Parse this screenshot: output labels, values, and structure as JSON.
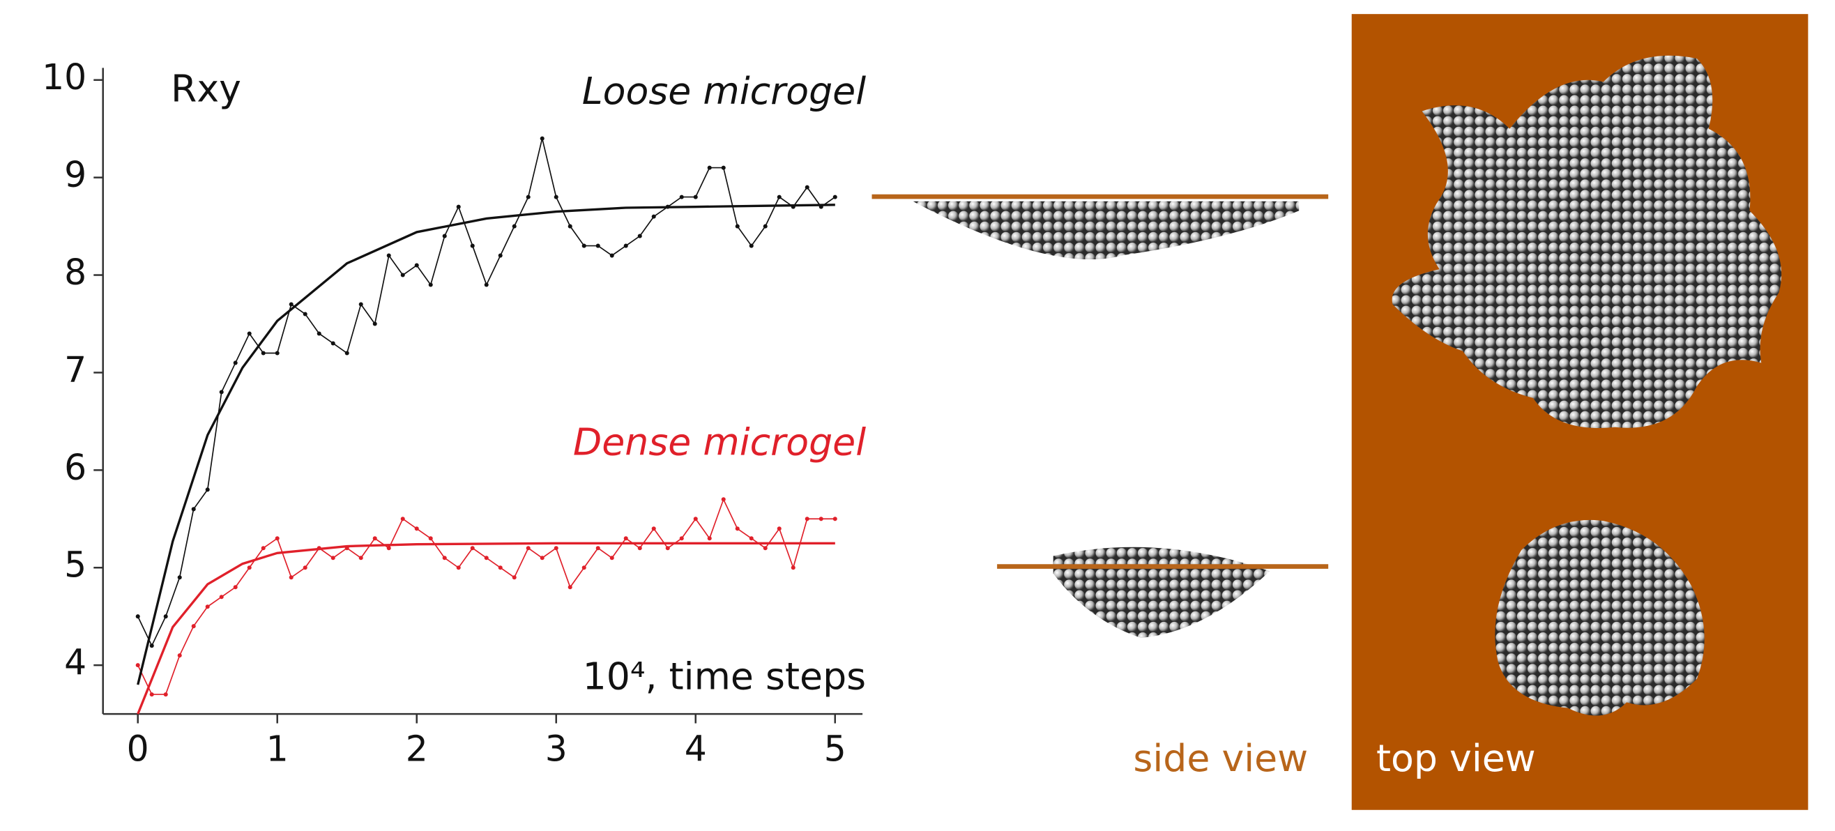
{
  "chart_data": {
    "type": "line",
    "annotations": [
      "Rxy",
      "10⁴, time steps"
    ],
    "x": [
      0,
      0.1,
      0.2,
      0.3,
      0.4,
      0.5,
      0.6,
      0.7,
      0.8,
      0.9,
      1.0,
      1.1,
      1.2,
      1.3,
      1.4,
      1.5,
      1.6,
      1.7,
      1.8,
      1.9,
      2.0,
      2.1,
      2.2,
      2.3,
      2.4,
      2.5,
      2.6,
      2.7,
      2.8,
      2.9,
      3.0,
      3.1,
      3.2,
      3.3,
      3.4,
      3.5,
      3.6,
      3.7,
      3.8,
      3.9,
      4.0,
      4.1,
      4.2,
      4.3,
      4.4,
      4.5,
      4.6,
      4.7,
      4.8,
      4.9,
      5.0
    ],
    "series": [
      {
        "name": "Loose microgel",
        "color": "#111111",
        "markers": true,
        "values": [
          4.5,
          4.2,
          4.5,
          4.9,
          5.6,
          5.8,
          6.8,
          7.1,
          7.4,
          7.2,
          7.2,
          7.7,
          7.6,
          7.4,
          7.3,
          7.2,
          7.7,
          7.5,
          8.2,
          8.0,
          8.1,
          7.9,
          8.4,
          8.7,
          8.3,
          7.9,
          8.2,
          8.5,
          8.8,
          9.4,
          8.8,
          8.5,
          8.3,
          8.3,
          8.2,
          8.3,
          8.4,
          8.6,
          8.7,
          8.8,
          8.8,
          9.1,
          9.1,
          8.5,
          8.3,
          8.5,
          8.8,
          8.7,
          8.9,
          8.7,
          8.8
        ]
      },
      {
        "name": "Dense microgel",
        "color": "#e0202a",
        "markers": true,
        "values": [
          4.0,
          3.7,
          3.7,
          4.1,
          4.4,
          4.6,
          4.7,
          4.8,
          5.0,
          5.2,
          5.3,
          4.9,
          5.0,
          5.2,
          5.1,
          5.2,
          5.1,
          5.3,
          5.2,
          5.5,
          5.4,
          5.3,
          5.1,
          5.0,
          5.2,
          5.1,
          5.0,
          4.9,
          5.2,
          5.1,
          5.2,
          4.8,
          5.0,
          5.2,
          5.1,
          5.3,
          5.2,
          5.4,
          5.2,
          5.3,
          5.5,
          5.3,
          5.7,
          5.4,
          5.3,
          5.2,
          5.4,
          5.0,
          5.5,
          5.5,
          5.5
        ]
      },
      {
        "color": "#111111",
        "markers": false,
        "x": [
          0,
          0.25,
          0.5,
          0.75,
          1,
          1.5,
          2,
          2.5,
          3,
          3.5,
          4,
          4.5,
          5
        ],
        "values": [
          3.8,
          5.27,
          6.36,
          7.05,
          7.53,
          8.12,
          8.44,
          8.58,
          8.65,
          8.69,
          8.7,
          8.71,
          8.72
        ]
      },
      {
        "color": "#e0202a",
        "markers": false,
        "x": [
          0,
          0.25,
          0.5,
          0.75,
          1,
          1.5,
          2,
          3,
          4,
          5
        ],
        "values": [
          3.5,
          4.39,
          4.83,
          5.04,
          5.15,
          5.22,
          5.24,
          5.25,
          5.25,
          5.25
        ]
      }
    ],
    "xlim": [
      -0.25,
      5.18
    ],
    "ylim": [
      3.5,
      10.1
    ],
    "xticks": [
      0,
      1,
      2,
      3,
      4,
      5
    ],
    "yticks": [
      4,
      5,
      6,
      7,
      8,
      9,
      10
    ]
  },
  "figure": {
    "side_view_label": "side view",
    "top_view_label": "top view",
    "panel_color": "#b35300"
  }
}
